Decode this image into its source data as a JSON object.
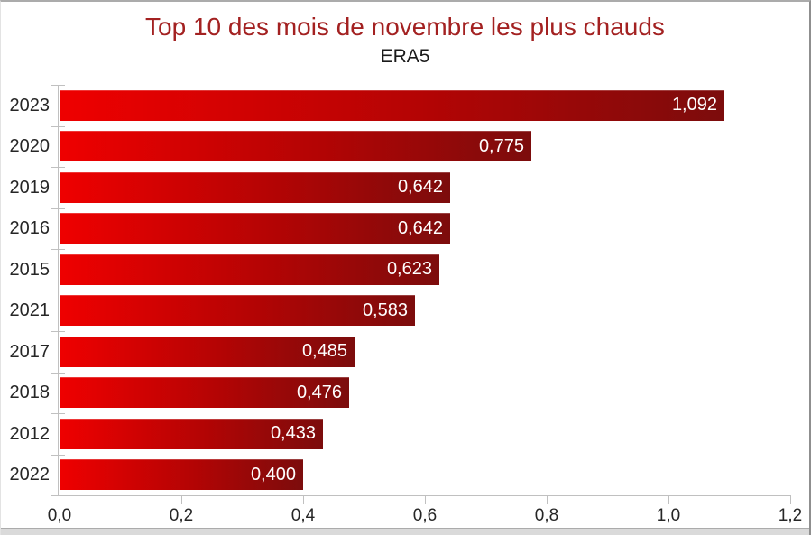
{
  "colors": {
    "title": "#a32121",
    "bar_gradient_start": "#ef0000",
    "bar_gradient_end": "#7c0c0c",
    "axis": "#c0c0c0",
    "tick_text": "#262626",
    "value_label_text": "#ffffff"
  },
  "chart_data": {
    "type": "bar",
    "orientation": "horizontal",
    "title": "Top 10 des mois de novembre les plus chauds",
    "subtitle": "ERA5",
    "categories": [
      "2023",
      "2020",
      "2019",
      "2016",
      "2015",
      "2021",
      "2017",
      "2018",
      "2012",
      "2022"
    ],
    "values": [
      1.092,
      0.775,
      0.642,
      0.642,
      0.623,
      0.583,
      0.485,
      0.476,
      0.433,
      0.4
    ],
    "value_labels": [
      "1,092",
      "0,775",
      "0,642",
      "0,642",
      "0,623",
      "0,583",
      "0,485",
      "0,476",
      "0,433",
      "0,400"
    ],
    "xlabel": "",
    "ylabel": "",
    "xlim": [
      0,
      1.2
    ],
    "x_tick_values": [
      0,
      0.2,
      0.4,
      0.6,
      0.8,
      1.0,
      1.2
    ],
    "x_tick_labels": [
      "0,0",
      "0,2",
      "0,4",
      "0,6",
      "0,8",
      "1,0",
      "1,2"
    ],
    "grid": false,
    "legend": null,
    "value_labels_position": "inside-end",
    "bar_fill": "gradient-red"
  }
}
